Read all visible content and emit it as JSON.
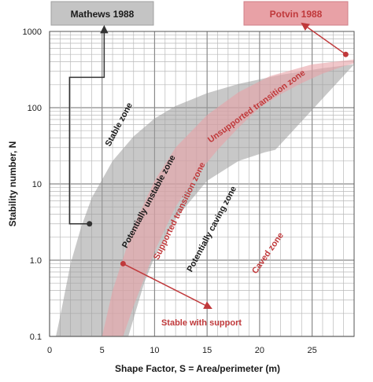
{
  "chart_data": {
    "type": "area",
    "title": "",
    "xlabel": "Shape Factor, S = Area/perimeter (m)",
    "ylabel": "Stability number, N",
    "xlim": [
      0,
      29
    ],
    "ylim": [
      0.1,
      1000
    ],
    "y_scale": "log",
    "grid": true,
    "x_ticks": [
      "0",
      "5",
      "10",
      "15",
      "20",
      "25"
    ],
    "y_ticks": [
      "0.1",
      "1.0",
      "10",
      "100",
      "1000"
    ],
    "legend": [
      "Mathews 1988",
      "Potvin 1988"
    ],
    "colors": {
      "mathews": "#9a9a9a",
      "potvin": "#e8a1a6",
      "potvin_dark": "#c0393b"
    },
    "series": [
      {
        "name": "Mathews 1988",
        "boundary": "upper",
        "x": [
          0.6,
          1,
          2,
          3,
          4,
          6,
          8,
          10,
          12,
          15,
          18,
          22,
          26,
          29
        ],
        "y": [
          0.1,
          0.18,
          0.9,
          2.7,
          6.5,
          20,
          42,
          72,
          105,
          155,
          205,
          270,
          330,
          370
        ]
      },
      {
        "name": "Mathews 1988",
        "boundary": "lower",
        "x": [
          7.5,
          9,
          10,
          12,
          15,
          18,
          20.5,
          21.5
        ],
        "y": [
          0.1,
          0.5,
          1.1,
          3.5,
          11,
          20,
          26,
          28
        ]
      },
      {
        "name": "Potvin 1988",
        "boundary": "upper",
        "x": [
          5,
          6,
          8,
          10,
          12,
          15,
          18,
          21,
          25,
          29
        ],
        "y": [
          0.1,
          0.4,
          2.8,
          11,
          30,
          80,
          160,
          260,
          370,
          430
        ]
      },
      {
        "name": "Potvin 1988",
        "boundary": "lower",
        "x": [
          7,
          8,
          10,
          12,
          14,
          16,
          18,
          20,
          22,
          24,
          26,
          28,
          29
        ],
        "y": [
          0.1,
          0.25,
          1.3,
          5,
          13,
          28,
          55,
          100,
          150,
          210,
          280,
          350,
          380
        ]
      }
    ],
    "annotations": [
      {
        "text": "Stable zone",
        "color": "#1a1a1a"
      },
      {
        "text": "Potentially unstable zone",
        "color": "#1a1a1a"
      },
      {
        "text": "Potentially caving zone",
        "color": "#1a1a1a"
      },
      {
        "text": "Unsupported transition zone",
        "color": "#c0393b"
      },
      {
        "text": "Supported transition zone",
        "color": "#c0393b"
      },
      {
        "text": "Caved zone",
        "color": "#c0393b"
      },
      {
        "text": "Stable with support",
        "color": "#c0393b"
      }
    ]
  }
}
